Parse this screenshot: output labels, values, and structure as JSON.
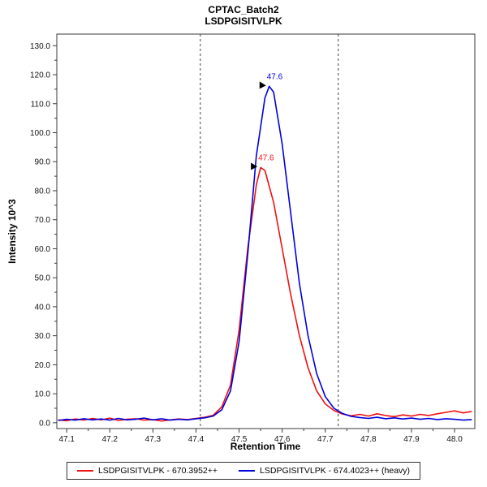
{
  "title": {
    "line1": "CPTAC_Batch2",
    "line2": "LSDPGISITVLPK"
  },
  "chart_data": {
    "type": "line",
    "title": "CPTAC_Batch2 — LSDPGISITVLPK",
    "xlabel": "Retention Time",
    "ylabel": "Intensity 10^3",
    "xlim": [
      47.077,
      48.047
    ],
    "ylim": [
      -2,
      134
    ],
    "grid": false,
    "legend_position": "bottom",
    "x_ticks": [
      "47.1",
      "47.2",
      "47.3",
      "47.4",
      "47.5",
      "47.6",
      "47.7",
      "47.8",
      "47.9",
      "48.0"
    ],
    "y_ticks": [
      "0.0",
      "10.0",
      "20.0",
      "30.0",
      "40.0",
      "50.0",
      "60.0",
      "70.0",
      "80.0",
      "90.0",
      "100.0",
      "110.0",
      "120.0",
      "130.0"
    ],
    "boundaries": [
      47.41,
      47.73
    ],
    "series": [
      {
        "name": "LSDPGISITVLPK - 670.3952++",
        "color": "#ee1111",
        "points": [
          [
            47.08,
            1.0
          ],
          [
            47.1,
            0.7
          ],
          [
            47.12,
            1.3
          ],
          [
            47.14,
            0.9
          ],
          [
            47.16,
            1.5
          ],
          [
            47.18,
            1.0
          ],
          [
            47.2,
            1.6
          ],
          [
            47.22,
            0.8
          ],
          [
            47.24,
            1.2
          ],
          [
            47.26,
            1.4
          ],
          [
            47.28,
            0.9
          ],
          [
            47.3,
            1.1
          ],
          [
            47.32,
            0.6
          ],
          [
            47.34,
            1.0
          ],
          [
            47.36,
            1.3
          ],
          [
            47.38,
            1.1
          ],
          [
            47.4,
            1.5
          ],
          [
            47.42,
            1.9
          ],
          [
            47.44,
            2.6
          ],
          [
            47.46,
            5.5
          ],
          [
            47.48,
            13.0
          ],
          [
            47.5,
            32.0
          ],
          [
            47.52,
            60.0
          ],
          [
            47.54,
            82.0
          ],
          [
            47.55,
            88.0
          ],
          [
            47.56,
            87.0
          ],
          [
            47.58,
            76.0
          ],
          [
            47.6,
            60.0
          ],
          [
            47.62,
            44.0
          ],
          [
            47.64,
            30.0
          ],
          [
            47.66,
            19.0
          ],
          [
            47.68,
            11.0
          ],
          [
            47.7,
            6.5
          ],
          [
            47.72,
            4.2
          ],
          [
            47.74,
            3.0
          ],
          [
            47.76,
            2.4
          ],
          [
            47.78,
            2.9
          ],
          [
            47.8,
            2.3
          ],
          [
            47.82,
            3.1
          ],
          [
            47.84,
            2.5
          ],
          [
            47.86,
            2.1
          ],
          [
            47.88,
            2.7
          ],
          [
            47.9,
            2.3
          ],
          [
            47.92,
            2.9
          ],
          [
            47.94,
            2.5
          ],
          [
            47.96,
            3.1
          ],
          [
            47.98,
            3.6
          ],
          [
            48.0,
            4.1
          ],
          [
            48.02,
            3.4
          ],
          [
            48.04,
            3.9
          ]
        ]
      },
      {
        "name": "LSDPGISITVLPK - 674.4023++ (heavy)",
        "color": "#0000dd",
        "points": [
          [
            47.08,
            0.8
          ],
          [
            47.1,
            1.2
          ],
          [
            47.12,
            0.9
          ],
          [
            47.14,
            1.4
          ],
          [
            47.16,
            1.0
          ],
          [
            47.18,
            1.3
          ],
          [
            47.2,
            0.9
          ],
          [
            47.22,
            1.5
          ],
          [
            47.24,
            1.0
          ],
          [
            47.26,
            1.2
          ],
          [
            47.28,
            1.6
          ],
          [
            47.3,
            1.0
          ],
          [
            47.32,
            1.4
          ],
          [
            47.34,
            0.9
          ],
          [
            47.36,
            1.2
          ],
          [
            47.38,
            1.0
          ],
          [
            47.4,
            1.4
          ],
          [
            47.42,
            1.7
          ],
          [
            47.44,
            2.3
          ],
          [
            47.46,
            4.5
          ],
          [
            47.48,
            11.0
          ],
          [
            47.5,
            28.0
          ],
          [
            47.52,
            58.0
          ],
          [
            47.54,
            92.0
          ],
          [
            47.56,
            112.0
          ],
          [
            47.57,
            116.0
          ],
          [
            47.58,
            114.0
          ],
          [
            47.6,
            96.0
          ],
          [
            47.62,
            72.0
          ],
          [
            47.64,
            48.0
          ],
          [
            47.66,
            30.0
          ],
          [
            47.68,
            17.0
          ],
          [
            47.7,
            9.0
          ],
          [
            47.72,
            5.0
          ],
          [
            47.74,
            3.2
          ],
          [
            47.76,
            2.2
          ],
          [
            47.78,
            1.8
          ],
          [
            47.8,
            1.5
          ],
          [
            47.82,
            1.9
          ],
          [
            47.84,
            1.4
          ],
          [
            47.86,
            1.7
          ],
          [
            47.88,
            1.3
          ],
          [
            47.9,
            1.6
          ],
          [
            47.92,
            1.2
          ],
          [
            47.94,
            1.5
          ],
          [
            47.96,
            1.1
          ],
          [
            47.98,
            1.4
          ],
          [
            48.0,
            1.2
          ],
          [
            48.02,
            0.9
          ],
          [
            48.04,
            1.1
          ]
        ]
      }
    ],
    "annotations": [
      {
        "label": "47.6",
        "x": 47.55,
        "y": 88,
        "color": "#ee1111"
      },
      {
        "label": "47.6",
        "x": 47.57,
        "y": 116,
        "color": "#0000dd"
      }
    ]
  }
}
